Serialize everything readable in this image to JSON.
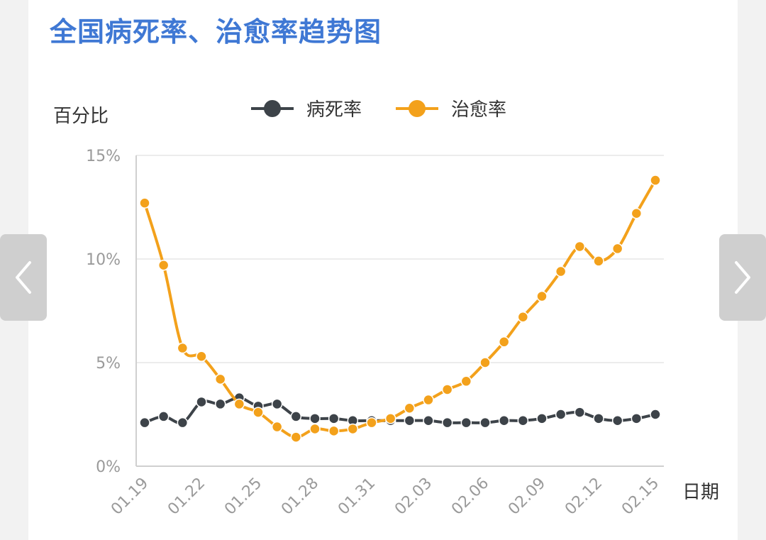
{
  "page": {
    "title": "全国病死率、治愈率趋势图"
  },
  "nav": {
    "prev_icon": "chevron-left-icon",
    "next_icon": "chevron-right-icon"
  },
  "colors": {
    "title": "#3f78d4",
    "death_rate": "#3d4349",
    "cure_rate": "#f3a11b",
    "grid": "#ececec",
    "axis_text": "#9a9a9a"
  },
  "chart_data": {
    "type": "line",
    "ylabel": "百分比",
    "xlabel": "日期",
    "ylim": [
      0,
      15
    ],
    "yticks": [
      "0%",
      "5%",
      "10%",
      "15%"
    ],
    "ytick_values": [
      0,
      5,
      10,
      15
    ],
    "grid": "horizontal",
    "legend_position": "top-center",
    "xtick_labels": [
      "01.19",
      "01.22",
      "01.25",
      "01.28",
      "01.31",
      "02.03",
      "02.06",
      "02.09",
      "02.12",
      "02.15"
    ],
    "categories": [
      "01.19",
      "01.20",
      "01.21",
      "01.22",
      "01.23",
      "01.24",
      "01.25",
      "01.26",
      "01.27",
      "01.28",
      "01.29",
      "01.30",
      "01.31",
      "02.01",
      "02.02",
      "02.03",
      "02.04",
      "02.05",
      "02.06",
      "02.07",
      "02.08",
      "02.09",
      "02.10",
      "02.11",
      "02.12",
      "02.13",
      "02.14",
      "02.15"
    ],
    "series": [
      {
        "name": "病死率",
        "color": "#3d4349",
        "values": [
          2.1,
          2.4,
          2.1,
          3.1,
          3.0,
          3.3,
          2.9,
          3.0,
          2.4,
          2.3,
          2.3,
          2.2,
          2.2,
          2.2,
          2.2,
          2.2,
          2.1,
          2.1,
          2.1,
          2.2,
          2.2,
          2.3,
          2.5,
          2.6,
          2.3,
          2.2,
          2.3,
          2.5
        ]
      },
      {
        "name": "治愈率",
        "color": "#f3a11b",
        "values": [
          12.7,
          9.7,
          5.7,
          5.3,
          4.2,
          3.0,
          2.6,
          1.9,
          1.4,
          1.8,
          1.7,
          1.8,
          2.1,
          2.3,
          2.8,
          3.2,
          3.7,
          4.1,
          5.0,
          6.0,
          7.2,
          8.2,
          9.4,
          10.6,
          9.9,
          10.5,
          12.2,
          13.8
        ]
      }
    ]
  }
}
